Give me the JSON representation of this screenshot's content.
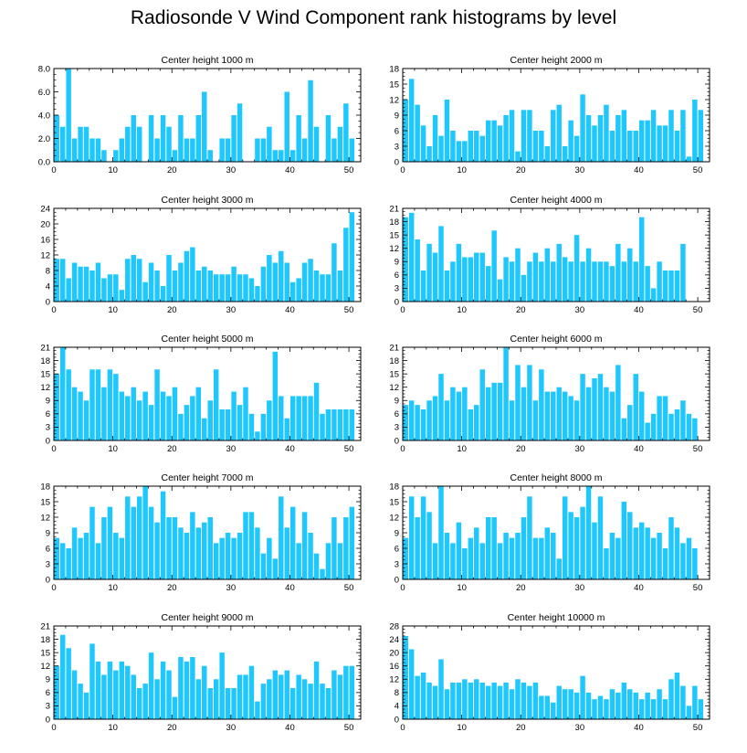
{
  "page": {
    "title": "Radiosonde V Wind Component rank histograms by level",
    "bar_color": "#1ec8ff",
    "axis_color": "#000000"
  },
  "chart_data": [
    {
      "type": "bar",
      "title": "Center height 1000 m",
      "x": [
        0,
        1,
        2,
        3,
        4,
        5,
        6,
        7,
        8,
        9,
        10,
        11,
        12,
        13,
        14,
        15,
        16,
        17,
        18,
        19,
        20,
        21,
        22,
        23,
        24,
        25,
        26,
        27,
        28,
        29,
        30,
        31,
        32,
        33,
        34,
        35,
        36,
        37,
        38,
        39,
        40,
        41,
        42,
        43,
        44,
        45,
        46,
        47,
        48,
        49,
        50,
        51
      ],
      "values": [
        4,
        3,
        8,
        2,
        3,
        3,
        2,
        2,
        1,
        0,
        1,
        2,
        3,
        4,
        3,
        0,
        4,
        2,
        4,
        3,
        1,
        4,
        2,
        2,
        4,
        6,
        1,
        0,
        2,
        2,
        4,
        5,
        0,
        0,
        2,
        2,
        3,
        1,
        1,
        6,
        1,
        4,
        2,
        7,
        3,
        0,
        4,
        2,
        3,
        5,
        2,
        0
      ],
      "xlim": [
        0,
        52
      ],
      "ylim": [
        0,
        8
      ],
      "yticks": [
        0,
        2,
        4,
        6,
        8
      ],
      "ytick_labels": [
        "0.0",
        "2.0",
        "4.0",
        "6.0",
        "8.0"
      ],
      "xticks": [
        0,
        10,
        20,
        30,
        40,
        50
      ],
      "xlabel": "",
      "ylabel": ""
    },
    {
      "type": "bar",
      "title": "Center height 2000 m",
      "x": [
        0,
        1,
        2,
        3,
        4,
        5,
        6,
        7,
        8,
        9,
        10,
        11,
        12,
        13,
        14,
        15,
        16,
        17,
        18,
        19,
        20,
        21,
        22,
        23,
        24,
        25,
        26,
        27,
        28,
        29,
        30,
        31,
        32,
        33,
        34,
        35,
        36,
        37,
        38,
        39,
        40,
        41,
        42,
        43,
        44,
        45,
        46,
        47,
        48,
        49,
        50,
        51
      ],
      "values": [
        12,
        16,
        11,
        7,
        3,
        9,
        5,
        12,
        6,
        4,
        4,
        6,
        6,
        5,
        8,
        8,
        7,
        9,
        10,
        2,
        10,
        10,
        6,
        6,
        3,
        10,
        11,
        3,
        8,
        5,
        13,
        9,
        7,
        9,
        11,
        6,
        9,
        10,
        6,
        6,
        8,
        8,
        10,
        7,
        7,
        10,
        6,
        10,
        1,
        12,
        10,
        0
      ],
      "xlim": [
        0,
        52
      ],
      "ylim": [
        0,
        18
      ],
      "yticks": [
        0,
        3,
        6,
        9,
        12,
        15,
        18
      ],
      "ytick_labels": [
        "0",
        "3",
        "6",
        "9",
        "12",
        "15",
        "18"
      ],
      "xticks": [
        0,
        10,
        20,
        30,
        40,
        50
      ],
      "xlabel": "",
      "ylabel": ""
    },
    {
      "type": "bar",
      "title": "Center height 3000 m",
      "x": [
        0,
        1,
        2,
        3,
        4,
        5,
        6,
        7,
        8,
        9,
        10,
        11,
        12,
        13,
        14,
        15,
        16,
        17,
        18,
        19,
        20,
        21,
        22,
        23,
        24,
        25,
        26,
        27,
        28,
        29,
        30,
        31,
        32,
        33,
        34,
        35,
        36,
        37,
        38,
        39,
        40,
        41,
        42,
        43,
        44,
        45,
        46,
        47,
        48,
        49,
        50,
        51
      ],
      "values": [
        11,
        11,
        6,
        10,
        9,
        9,
        8,
        10,
        6,
        7,
        7,
        3,
        11,
        12,
        11,
        5,
        10,
        8,
        4,
        12,
        8,
        10,
        13,
        14,
        8,
        9,
        8,
        7,
        7,
        7,
        9,
        7,
        7,
        6,
        4,
        9,
        12,
        10,
        13,
        10,
        5,
        6,
        10,
        11,
        8,
        7,
        7,
        15,
        8,
        19,
        23,
        0
      ],
      "xlim": [
        0,
        52
      ],
      "ylim": [
        0,
        24
      ],
      "yticks": [
        0,
        4,
        8,
        12,
        16,
        20,
        24
      ],
      "ytick_labels": [
        "0",
        "4",
        "8",
        "12",
        "16",
        "20",
        "24"
      ],
      "xticks": [
        0,
        10,
        20,
        30,
        40,
        50
      ],
      "xlabel": "",
      "ylabel": ""
    },
    {
      "type": "bar",
      "title": "Center height 4000 m",
      "x": [
        0,
        1,
        2,
        3,
        4,
        5,
        6,
        7,
        8,
        9,
        10,
        11,
        12,
        13,
        14,
        15,
        16,
        17,
        18,
        19,
        20,
        21,
        22,
        23,
        24,
        25,
        26,
        27,
        28,
        29,
        30,
        31,
        32,
        33,
        34,
        35,
        36,
        37,
        38,
        39,
        40,
        41,
        42,
        43,
        44,
        45,
        46,
        47,
        48,
        49,
        50,
        51
      ],
      "values": [
        19,
        20,
        14,
        7,
        13,
        11,
        17,
        7,
        9,
        13,
        10,
        10,
        11,
        11,
        8,
        16,
        5,
        10,
        9,
        12,
        6,
        9,
        11,
        9,
        12,
        9,
        13,
        10,
        9,
        15,
        9,
        12,
        9,
        9,
        9,
        8,
        13,
        9,
        12,
        9,
        19,
        8,
        3,
        9,
        7,
        7,
        7,
        13,
        0,
        0,
        0,
        0
      ],
      "xlim": [
        0,
        52
      ],
      "ylim": [
        0,
        21
      ],
      "yticks": [
        0,
        3,
        6,
        9,
        12,
        15,
        18,
        21
      ],
      "ytick_labels": [
        "0",
        "3",
        "6",
        "9",
        "12",
        "15",
        "18",
        "21"
      ],
      "xticks": [
        0,
        10,
        20,
        30,
        40,
        50
      ],
      "xlabel": "",
      "ylabel": ""
    },
    {
      "type": "bar",
      "title": "Center height 5000 m",
      "x": [
        0,
        1,
        2,
        3,
        4,
        5,
        6,
        7,
        8,
        9,
        10,
        11,
        12,
        13,
        14,
        15,
        16,
        17,
        18,
        19,
        20,
        21,
        22,
        23,
        24,
        25,
        26,
        27,
        28,
        29,
        30,
        31,
        32,
        33,
        34,
        35,
        36,
        37,
        38,
        39,
        40,
        41,
        42,
        43,
        44,
        45,
        46,
        47,
        48,
        49,
        50,
        51
      ],
      "values": [
        15,
        21,
        16,
        12,
        11,
        9,
        16,
        16,
        12,
        16,
        15,
        11,
        10,
        12,
        9,
        11,
        8,
        16,
        11,
        10,
        12,
        6,
        8,
        10,
        12,
        5,
        9,
        16,
        7,
        7,
        11,
        8,
        12,
        6,
        2,
        6,
        9,
        20,
        10,
        5,
        10,
        10,
        10,
        10,
        13,
        6,
        7,
        7,
        7,
        7,
        7,
        0
      ],
      "xlim": [
        0,
        52
      ],
      "ylim": [
        0,
        21
      ],
      "yticks": [
        0,
        3,
        6,
        9,
        12,
        15,
        18,
        21
      ],
      "ytick_labels": [
        "0",
        "3",
        "6",
        "9",
        "12",
        "15",
        "18",
        "21"
      ],
      "xticks": [
        0,
        10,
        20,
        30,
        40,
        50
      ],
      "xlabel": "",
      "ylabel": ""
    },
    {
      "type": "bar",
      "title": "Center height 6000 m",
      "x": [
        0,
        1,
        2,
        3,
        4,
        5,
        6,
        7,
        8,
        9,
        10,
        11,
        12,
        13,
        14,
        15,
        16,
        17,
        18,
        19,
        20,
        21,
        22,
        23,
        24,
        25,
        26,
        27,
        28,
        29,
        30,
        31,
        32,
        33,
        34,
        35,
        36,
        37,
        38,
        39,
        40,
        41,
        42,
        43,
        44,
        45,
        46,
        47,
        48,
        49,
        50,
        51
      ],
      "values": [
        8,
        9,
        8,
        7,
        9,
        10,
        15,
        9,
        12,
        11,
        12,
        7,
        8,
        16,
        12,
        13,
        13,
        21,
        9,
        17,
        12,
        17,
        9,
        16,
        11,
        11,
        12,
        11,
        10,
        9,
        15,
        12,
        14,
        15,
        12,
        11,
        17,
        5,
        8,
        15,
        11,
        4,
        6,
        10,
        10,
        6,
        7,
        9,
        6,
        5,
        0,
        0
      ],
      "xlim": [
        0,
        52
      ],
      "ylim": [
        0,
        21
      ],
      "yticks": [
        0,
        3,
        6,
        9,
        12,
        15,
        18,
        21
      ],
      "ytick_labels": [
        "0",
        "3",
        "6",
        "9",
        "12",
        "15",
        "18",
        "21"
      ],
      "xticks": [
        0,
        10,
        20,
        30,
        40,
        50
      ],
      "xlabel": "",
      "ylabel": ""
    },
    {
      "type": "bar",
      "title": "Center height 7000 m",
      "x": [
        0,
        1,
        2,
        3,
        4,
        5,
        6,
        7,
        8,
        9,
        10,
        11,
        12,
        13,
        14,
        15,
        16,
        17,
        18,
        19,
        20,
        21,
        22,
        23,
        24,
        25,
        26,
        27,
        28,
        29,
        30,
        31,
        32,
        33,
        34,
        35,
        36,
        37,
        38,
        39,
        40,
        41,
        42,
        43,
        44,
        45,
        46,
        47,
        48,
        49,
        50,
        51
      ],
      "values": [
        8,
        7,
        6,
        10,
        8,
        9,
        14,
        7,
        12,
        14,
        9,
        8,
        16,
        14,
        16,
        18,
        14,
        11,
        17,
        12,
        12,
        10,
        9,
        13,
        10,
        11,
        12,
        7,
        8,
        9,
        8,
        9,
        13,
        13,
        10,
        5,
        8,
        4,
        16,
        10,
        14,
        7,
        13,
        9,
        5,
        2,
        7,
        12,
        7,
        12,
        14,
        0
      ],
      "xlim": [
        0,
        52
      ],
      "ylim": [
        0,
        18
      ],
      "yticks": [
        0,
        3,
        6,
        9,
        12,
        15,
        18
      ],
      "ytick_labels": [
        "0",
        "3",
        "6",
        "9",
        "12",
        "15",
        "18"
      ],
      "xticks": [
        0,
        10,
        20,
        30,
        40,
        50
      ],
      "xlabel": "",
      "ylabel": ""
    },
    {
      "type": "bar",
      "title": "Center height 8000 m",
      "x": [
        0,
        1,
        2,
        3,
        4,
        5,
        6,
        7,
        8,
        9,
        10,
        11,
        12,
        13,
        14,
        15,
        16,
        17,
        18,
        19,
        20,
        21,
        22,
        23,
        24,
        25,
        26,
        27,
        28,
        29,
        30,
        31,
        32,
        33,
        34,
        35,
        36,
        37,
        38,
        39,
        40,
        41,
        42,
        43,
        44,
        45,
        46,
        47,
        48,
        49,
        50,
        51
      ],
      "values": [
        8,
        16,
        12,
        16,
        13,
        7,
        18,
        9,
        7,
        11,
        6,
        8,
        10,
        7,
        12,
        12,
        7,
        9,
        8,
        9,
        12,
        16,
        8,
        8,
        10,
        9,
        4,
        16,
        13,
        12,
        14,
        18,
        11,
        16,
        6,
        9,
        8,
        15,
        13,
        10,
        11,
        10,
        8,
        9,
        6,
        12,
        10,
        7,
        8,
        6,
        0,
        0
      ],
      "xlim": [
        0,
        52
      ],
      "ylim": [
        0,
        18
      ],
      "yticks": [
        0,
        3,
        6,
        9,
        12,
        15,
        18
      ],
      "ytick_labels": [
        "0",
        "3",
        "6",
        "9",
        "12",
        "15",
        "18"
      ],
      "xticks": [
        0,
        10,
        20,
        30,
        40,
        50
      ],
      "xlabel": "",
      "ylabel": ""
    },
    {
      "type": "bar",
      "title": "Center height 9000 m",
      "x": [
        0,
        1,
        2,
        3,
        4,
        5,
        6,
        7,
        8,
        9,
        10,
        11,
        12,
        13,
        14,
        15,
        16,
        17,
        18,
        19,
        20,
        21,
        22,
        23,
        24,
        25,
        26,
        27,
        28,
        29,
        30,
        31,
        32,
        33,
        34,
        35,
        36,
        37,
        38,
        39,
        40,
        41,
        42,
        43,
        44,
        45,
        46,
        47,
        48,
        49,
        50,
        51
      ],
      "values": [
        12,
        19,
        16,
        11,
        8,
        6,
        17,
        13,
        10,
        13,
        11,
        13,
        12,
        10,
        7,
        8,
        15,
        9,
        13,
        11,
        5,
        14,
        13,
        14,
        9,
        12,
        7,
        9,
        15,
        7,
        7,
        10,
        10,
        12,
        4,
        8,
        9,
        11,
        10,
        11,
        7,
        10,
        9,
        8,
        13,
        8,
        7,
        11,
        10,
        12,
        12,
        0
      ],
      "xlim": [
        0,
        52
      ],
      "ylim": [
        0,
        21
      ],
      "yticks": [
        0,
        3,
        6,
        9,
        12,
        15,
        18,
        21
      ],
      "ytick_labels": [
        "0",
        "3",
        "6",
        "9",
        "12",
        "15",
        "18",
        "21"
      ],
      "xticks": [
        0,
        10,
        20,
        30,
        40,
        50
      ],
      "xlabel": "",
      "ylabel": ""
    },
    {
      "type": "bar",
      "title": "Center height 10000 m",
      "x": [
        0,
        1,
        2,
        3,
        4,
        5,
        6,
        7,
        8,
        9,
        10,
        11,
        12,
        13,
        14,
        15,
        16,
        17,
        18,
        19,
        20,
        21,
        22,
        23,
        24,
        25,
        26,
        27,
        28,
        29,
        30,
        31,
        32,
        33,
        34,
        35,
        36,
        37,
        38,
        39,
        40,
        41,
        42,
        43,
        44,
        45,
        46,
        47,
        48,
        49,
        50,
        51
      ],
      "values": [
        25,
        21,
        13,
        14,
        11,
        10,
        18,
        9,
        11,
        11,
        12,
        11,
        12,
        11,
        10,
        11,
        10,
        11,
        9,
        12,
        11,
        10,
        11,
        7,
        7,
        5,
        10,
        9,
        9,
        8,
        13,
        8,
        6,
        7,
        6,
        9,
        8,
        11,
        9,
        8,
        6,
        8,
        6,
        9,
        6,
        12,
        14,
        10,
        4,
        10,
        6,
        0
      ],
      "xlim": [
        0,
        52
      ],
      "ylim": [
        0,
        28
      ],
      "yticks": [
        0,
        4,
        8,
        12,
        16,
        20,
        24,
        28
      ],
      "ytick_labels": [
        "0",
        "4",
        "8",
        "12",
        "16",
        "20",
        "24",
        "28"
      ],
      "xticks": [
        0,
        10,
        20,
        30,
        40,
        50
      ],
      "xlabel": "",
      "ylabel": ""
    }
  ]
}
